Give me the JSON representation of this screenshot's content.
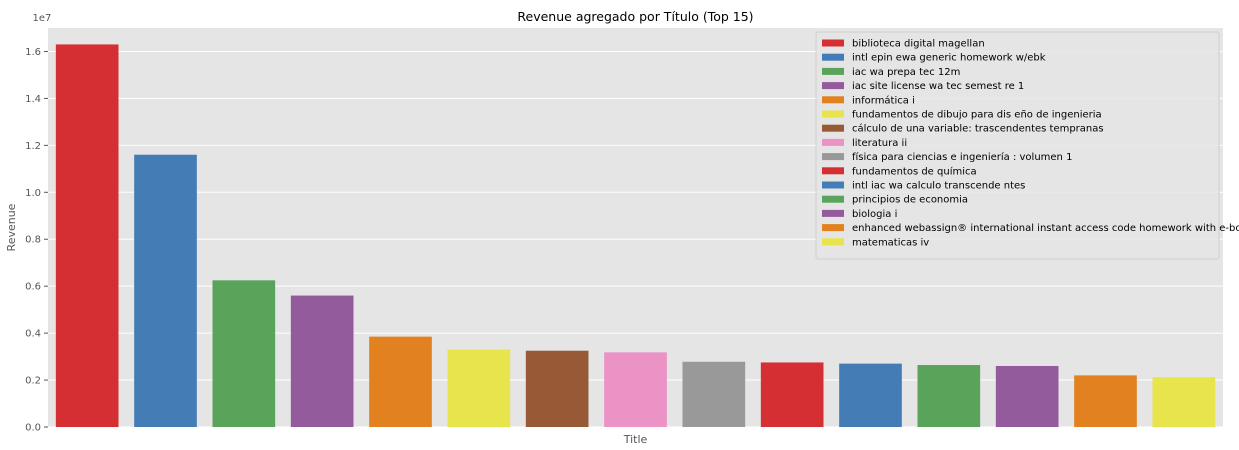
{
  "chart_data": {
    "type": "bar",
    "title": "Revenue agregado por Título (Top 15)",
    "xlabel": "Title",
    "ylabel": "Revenue",
    "y_offset_label": "1e7",
    "ylim": [
      0,
      1.7
    ],
    "y_ticks": [
      0.0,
      0.2,
      0.4,
      0.6,
      0.8,
      1.0,
      1.2,
      1.4,
      1.6
    ],
    "y_tick_labels": [
      "0.0",
      "0.2",
      "0.4",
      "0.6",
      "0.8",
      "1.0",
      "1.2",
      "1.4",
      "1.6"
    ],
    "grid": true,
    "legend_position": "top-right",
    "categories": [
      "biblioteca digital magellan",
      "intl epin ewa generic homework w/ebk",
      "iac wa prepa tec 12m",
      "iac site license wa tec semest re 1",
      "informática i",
      "fundamentos de dibujo para dis eño de ingenieria",
      "cálculo de una variable: trascendentes tempranas",
      "literatura ii",
      "física para ciencias e ingeniería : volumen 1",
      "fundamentos de química",
      "intl iac wa calculo transcende ntes",
      "principios de economia",
      "biologia i",
      "enhanced webassign® international instant access code homework with e-book",
      "matematicas iv"
    ],
    "values": [
      1.63,
      1.16,
      0.625,
      0.56,
      0.385,
      0.33,
      0.325,
      0.318,
      0.278,
      0.275,
      0.27,
      0.264,
      0.26,
      0.22,
      0.212
    ],
    "colors": [
      "#d62f33",
      "#447db5",
      "#5aa35a",
      "#935a9c",
      "#e2811f",
      "#e8e44b",
      "#985a36",
      "#ea93c4",
      "#999999",
      "#d62f33",
      "#447db5",
      "#5aa35a",
      "#935a9c",
      "#e2811f",
      "#e8e44b"
    ]
  }
}
